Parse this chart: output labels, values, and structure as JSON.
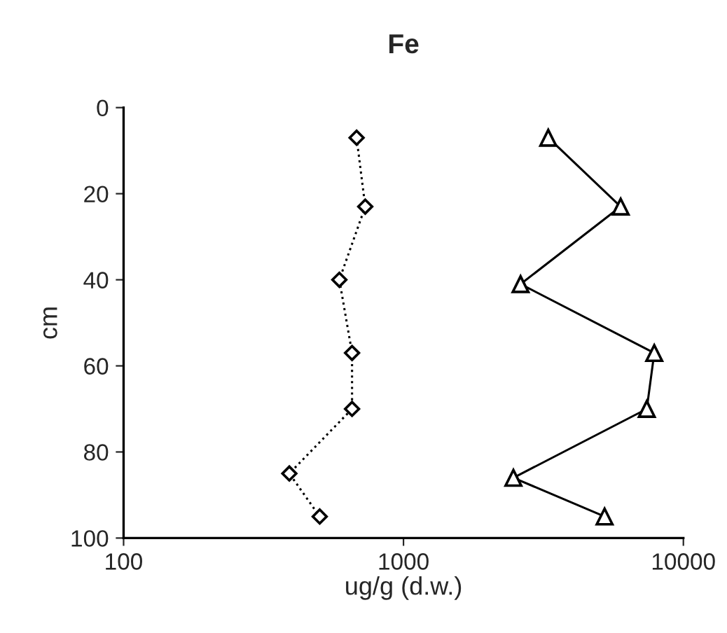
{
  "chart_data": {
    "type": "line",
    "title": "Fe",
    "xlabel": "ug/g (d.w.)",
    "ylabel": "cm",
    "log": "x",
    "xlim": [
      100,
      10000
    ],
    "xticks": [
      100,
      1000,
      10000
    ],
    "ylim": [
      100,
      0
    ],
    "yticks": [
      0,
      20,
      40,
      60,
      80,
      100
    ],
    "grid": false,
    "series": [
      {
        "color": "#000000",
        "marker": "diamond",
        "line_style": "dotted",
        "x": [
          680,
          730,
          590,
          655,
          655,
          391,
          502
        ],
        "values": [
          7,
          23,
          40,
          57,
          70,
          85,
          95
        ]
      },
      {
        "color": "#000000",
        "marker": "triangle",
        "line_style": "solid",
        "x": [
          3290,
          5970,
          2620,
          7870,
          7400,
          2470,
          5230
        ],
        "values": [
          7,
          23,
          41,
          57,
          70,
          86,
          95
        ]
      }
    ]
  }
}
